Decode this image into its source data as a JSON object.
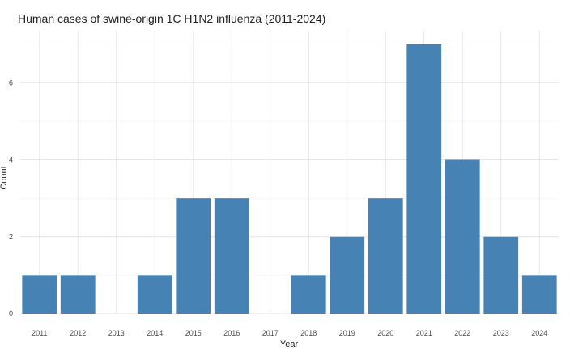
{
  "chart_data": {
    "type": "bar",
    "title": "Human cases of swine-origin 1C H1N2 influenza (2011-2024)",
    "xlabel": "Year",
    "ylabel": "Count",
    "categories": [
      "2011",
      "2012",
      "2013",
      "2014",
      "2015",
      "2016",
      "2017",
      "2018",
      "2019",
      "2020",
      "2021",
      "2022",
      "2023",
      "2024"
    ],
    "values": [
      1,
      1,
      0,
      1,
      3,
      3,
      0,
      1,
      2,
      3,
      7,
      4,
      2,
      1
    ],
    "ylim": [
      0,
      7.35
    ],
    "yticks": [
      0,
      2,
      4,
      6
    ],
    "grid": true,
    "legend": "none",
    "bar_color": "#4682b4"
  }
}
